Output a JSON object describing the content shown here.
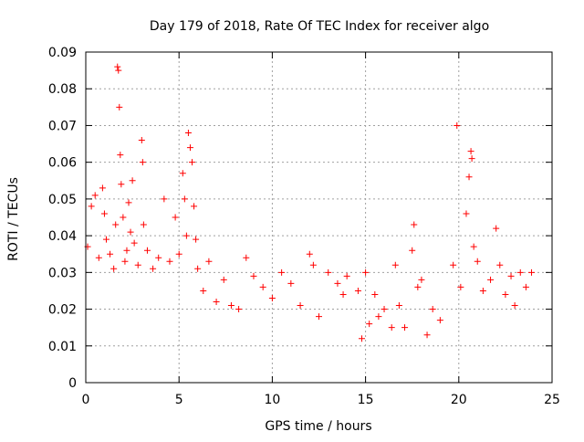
{
  "chart_data": {
    "type": "scatter",
    "title": "Day 179 of 2018, Rate Of TEC Index for receiver algo",
    "xlabel": "GPS time / hours",
    "ylabel": "ROTI / TECUs",
    "xlim": [
      0,
      25
    ],
    "ylim": [
      0,
      0.09
    ],
    "x_ticks": [
      0,
      5,
      10,
      15,
      20,
      25
    ],
    "x_tick_labels": [
      "0",
      "5",
      "10",
      "15",
      "20",
      "25"
    ],
    "y_ticks": [
      0,
      0.01,
      0.02,
      0.03,
      0.04,
      0.05,
      0.06,
      0.07,
      0.08,
      0.09
    ],
    "y_tick_labels": [
      "0",
      "0.01",
      "0.02",
      "0.03",
      "0.04",
      "0.05",
      "0.06",
      "0.07",
      "0.08",
      "0.09"
    ],
    "grid": true,
    "legend": "none",
    "marker": "plus",
    "color": "#ff0000",
    "series": [
      {
        "x": [
          0.1,
          0.3,
          0.5,
          0.7,
          0.9,
          1.0,
          1.1,
          1.3,
          1.5,
          1.6,
          1.7,
          1.75,
          1.8,
          1.85,
          1.9,
          2.0,
          2.1,
          2.2,
          2.3,
          2.4,
          2.5,
          2.6,
          2.8,
          3.0,
          3.05,
          3.1,
          3.3,
          3.6,
          3.9,
          4.2,
          4.5,
          4.8,
          5.0,
          5.2,
          5.3,
          5.4,
          5.5,
          5.6,
          5.7,
          5.8,
          5.9,
          6.0,
          6.3,
          6.6,
          7.0,
          7.4,
          7.8,
          8.2,
          8.6,
          9.0,
          9.5,
          10.0,
          10.5,
          11.0,
          11.5,
          12.0,
          12.2,
          12.5,
          13.0,
          13.5,
          13.8,
          14.0,
          14.6,
          14.8,
          15.0,
          15.2,
          15.5,
          15.7,
          16.0,
          16.4,
          16.6,
          16.8,
          17.1,
          17.5,
          17.6,
          17.8,
          18.0,
          18.3,
          18.6,
          19.0,
          19.7,
          19.9,
          20.1,
          20.4,
          20.55,
          20.65,
          20.7,
          20.8,
          21.0,
          21.3,
          21.7,
          22.0,
          22.2,
          22.5,
          22.8,
          23.0,
          23.3,
          23.6,
          23.9
        ],
        "y": [
          0.037,
          0.048,
          0.051,
          0.034,
          0.053,
          0.046,
          0.039,
          0.035,
          0.031,
          0.043,
          0.086,
          0.085,
          0.075,
          0.062,
          0.054,
          0.045,
          0.033,
          0.036,
          0.049,
          0.041,
          0.055,
          0.038,
          0.032,
          0.066,
          0.06,
          0.043,
          0.036,
          0.031,
          0.034,
          0.05,
          0.033,
          0.045,
          0.035,
          0.057,
          0.05,
          0.04,
          0.068,
          0.064,
          0.06,
          0.048,
          0.039,
          0.031,
          0.025,
          0.033,
          0.022,
          0.028,
          0.021,
          0.02,
          0.034,
          0.029,
          0.026,
          0.023,
          0.03,
          0.027,
          0.021,
          0.035,
          0.032,
          0.018,
          0.03,
          0.027,
          0.024,
          0.029,
          0.025,
          0.012,
          0.03,
          0.016,
          0.024,
          0.018,
          0.02,
          0.015,
          0.032,
          0.021,
          0.015,
          0.036,
          0.043,
          0.026,
          0.028,
          0.013,
          0.02,
          0.017,
          0.032,
          0.07,
          0.026,
          0.046,
          0.056,
          0.063,
          0.061,
          0.037,
          0.033,
          0.025,
          0.028,
          0.042,
          0.032,
          0.024,
          0.029,
          0.021,
          0.03,
          0.026,
          0.03
        ]
      }
    ]
  }
}
